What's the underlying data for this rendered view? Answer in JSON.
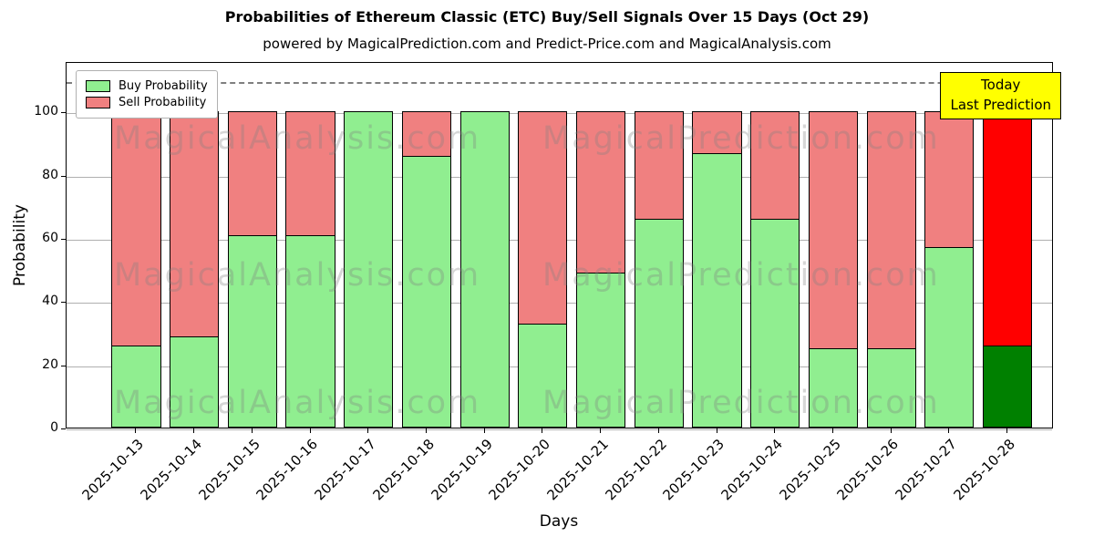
{
  "chart_data": {
    "type": "bar",
    "stacked": true,
    "title": "Probabilities of Ethereum Classic (ETC) Buy/Sell Signals Over 15 Days (Oct 29)",
    "subtitle": "powered by MagicalPrediction.com and Predict-Price.com and MagicalAnalysis.com",
    "xlabel": "Days",
    "ylabel": "Probability",
    "categories": [
      "2025-10-13",
      "2025-10-14",
      "2025-10-15",
      "2025-10-16",
      "2025-10-17",
      "2025-10-18",
      "2025-10-19",
      "2025-10-20",
      "2025-10-21",
      "2025-10-22",
      "2025-10-23",
      "2025-10-24",
      "2025-10-25",
      "2025-10-26",
      "2025-10-27",
      "2025-10-28"
    ],
    "series": [
      {
        "name": "Buy Probability",
        "color": "#90ee90",
        "values": [
          26,
          29,
          61,
          61,
          100,
          86,
          100,
          33,
          49,
          66,
          87,
          66,
          25,
          25,
          57,
          26
        ]
      },
      {
        "name": "Sell Probability",
        "color": "#f08080",
        "values": [
          74,
          71,
          39,
          39,
          0,
          14,
          0,
          67,
          51,
          34,
          13,
          34,
          75,
          75,
          43,
          74
        ]
      }
    ],
    "today_index": 15,
    "today_colors": {
      "buy": "#008000",
      "sell": "#ff0000"
    },
    "ylim": [
      0,
      116
    ],
    "yticks": [
      0,
      20,
      40,
      60,
      80,
      100
    ],
    "dashed_line_y": 110,
    "grid": true,
    "legend_position": "upper left",
    "annotation": {
      "line1": "Today",
      "line2": "Last Prediction"
    },
    "watermarks": [
      "MagicalAnalysis.com",
      "MagicalPrediction.com"
    ]
  }
}
